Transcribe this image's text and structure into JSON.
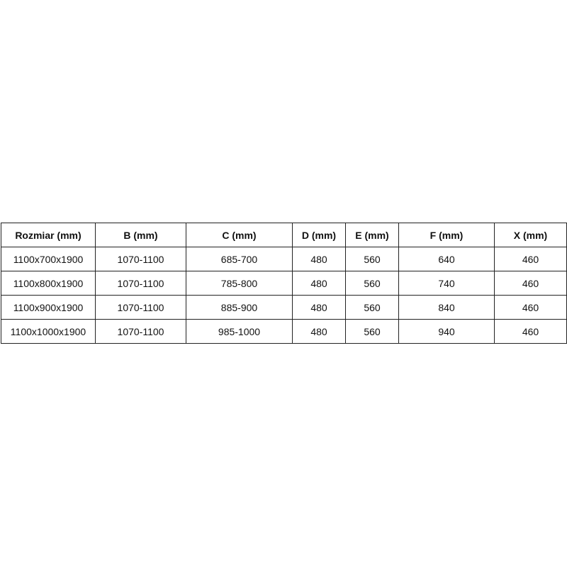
{
  "table": {
    "headers": [
      "Rozmiar (mm)",
      "B (mm)",
      "C (mm)",
      "D (mm)",
      "E (mm)",
      "F (mm)",
      "X (mm)"
    ],
    "rows": [
      [
        "1100x700x1900",
        "1070-1100",
        "685-700",
        "480",
        "560",
        "640",
        "460"
      ],
      [
        "1100x800x1900",
        "1070-1100",
        "785-800",
        "480",
        "560",
        "740",
        "460"
      ],
      [
        "1100x900x1900",
        "1070-1100",
        "885-900",
        "480",
        "560",
        "840",
        "460"
      ],
      [
        "1100x1000x1900",
        "1070-1100",
        "985-1000",
        "480",
        "560",
        "940",
        "460"
      ]
    ]
  }
}
